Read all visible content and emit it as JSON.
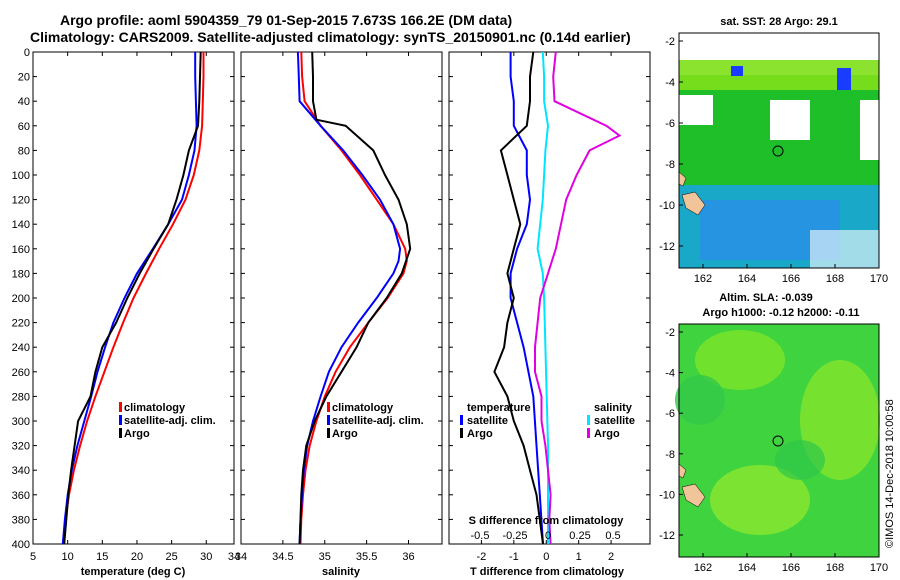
{
  "titles": {
    "line1": "Argo profile: aoml 5904359_79 01-Sep-2015 7.673S 166.2E (DM data)",
    "line2": "Climatology: CARS2009. Satellite-adjusted climatology: synTS_20150901.nc (0.14d earlier)"
  },
  "colors": {
    "climatology": "#ff0000",
    "satellite": "#0000ff",
    "argo": "#000000",
    "sal_satellite": "#00e5ff",
    "sal_argo": "#e000e0"
  },
  "chart_data": [
    {
      "id": "temperature",
      "type": "line",
      "xlabel": "temperature (deg C)",
      "xlim": [
        5,
        34
      ],
      "xticks": [
        5,
        10,
        15,
        20,
        25,
        30,
        34
      ],
      "ylim": [
        0,
        400
      ],
      "yticks": [
        0,
        20,
        40,
        60,
        80,
        100,
        120,
        140,
        160,
        180,
        200,
        220,
        240,
        260,
        280,
        300,
        320,
        340,
        360,
        380,
        400
      ],
      "legend": [
        "climatology",
        "satellite-adj. clim.",
        "Argo"
      ],
      "series": [
        {
          "name": "climatology",
          "color": "#ff0000",
          "depth": [
            0,
            20,
            40,
            60,
            80,
            100,
            120,
            140,
            160,
            180,
            200,
            220,
            240,
            260,
            280,
            300,
            320,
            340,
            360,
            380,
            400
          ],
          "values": [
            29.6,
            29.6,
            29.5,
            29.4,
            29.0,
            28.2,
            27.0,
            25.2,
            23.2,
            21.3,
            19.5,
            18.0,
            16.6,
            15.3,
            14.0,
            12.8,
            11.8,
            10.9,
            10.2,
            9.7,
            9.3
          ]
        },
        {
          "name": "satellite-adj. clim.",
          "color": "#0000ff",
          "depth": [
            0,
            20,
            40,
            60,
            80,
            100,
            120,
            140,
            160,
            180,
            200,
            220,
            240,
            260,
            280,
            300,
            320,
            340,
            360,
            380,
            400
          ],
          "values": [
            28.4,
            28.4,
            28.5,
            28.6,
            28.3,
            27.5,
            26.5,
            24.5,
            22.3,
            20.0,
            18.2,
            16.6,
            15.4,
            14.3,
            13.4,
            12.4,
            11.4,
            10.6,
            10.0,
            9.6,
            9.3
          ]
        },
        {
          "name": "Argo",
          "color": "#000000",
          "depth": [
            0,
            20,
            40,
            60,
            80,
            100,
            120,
            140,
            160,
            180,
            200,
            220,
            240,
            260,
            280,
            300,
            320,
            340,
            360,
            380,
            400
          ],
          "values": [
            29.2,
            29.1,
            29.0,
            28.8,
            27.5,
            26.7,
            25.7,
            24.5,
            22.4,
            20.4,
            18.6,
            17.0,
            15.0,
            14.0,
            13.3,
            11.5,
            11.0,
            10.5,
            10.1,
            9.8,
            9.5
          ]
        }
      ]
    },
    {
      "id": "salinity",
      "type": "line",
      "xlabel": "salinity",
      "xlim": [
        34,
        36.4
      ],
      "xticks": [
        34,
        34.5,
        35,
        35.5,
        36
      ],
      "ylim": [
        0,
        400
      ],
      "legend": [
        "climatology",
        "satellite-adj. clim.",
        "Argo"
      ],
      "series": [
        {
          "name": "climatology",
          "color": "#ff0000",
          "depth": [
            0,
            20,
            40,
            60,
            80,
            100,
            120,
            140,
            160,
            170,
            180,
            200,
            220,
            240,
            260,
            280,
            300,
            320,
            340,
            360,
            380,
            400
          ],
          "values": [
            34.72,
            34.73,
            34.76,
            34.95,
            35.2,
            35.42,
            35.62,
            35.82,
            35.96,
            35.98,
            35.94,
            35.75,
            35.52,
            35.3,
            35.13,
            35.0,
            34.9,
            34.82,
            34.77,
            34.74,
            34.72,
            34.71
          ]
        },
        {
          "name": "satellite-adj. clim.",
          "color": "#0000ff",
          "depth": [
            0,
            20,
            40,
            60,
            80,
            100,
            120,
            140,
            160,
            170,
            180,
            200,
            220,
            240,
            260,
            280,
            300,
            320,
            340,
            360,
            380,
            400
          ],
          "values": [
            34.68,
            34.69,
            34.7,
            34.95,
            35.22,
            35.45,
            35.66,
            35.82,
            35.9,
            35.88,
            35.82,
            35.62,
            35.4,
            35.2,
            35.05,
            34.95,
            34.86,
            34.79,
            34.75,
            34.73,
            34.71,
            34.7
          ]
        },
        {
          "name": "Argo",
          "color": "#000000",
          "depth": [
            0,
            20,
            40,
            55,
            60,
            80,
            100,
            120,
            140,
            160,
            180,
            200,
            220,
            240,
            260,
            280,
            300,
            320,
            340,
            360,
            380,
            400
          ],
          "values": [
            34.85,
            34.86,
            34.86,
            34.9,
            35.25,
            35.58,
            35.72,
            35.88,
            35.98,
            36.02,
            35.92,
            35.74,
            35.52,
            35.38,
            35.2,
            35.02,
            34.88,
            34.78,
            34.74,
            34.72,
            34.71,
            34.7
          ]
        }
      ]
    },
    {
      "id": "difference",
      "type": "line",
      "xlabel": "T difference from climatology",
      "xlim": [
        -3,
        3.2
      ],
      "xticks": [
        -2,
        -1,
        0,
        1,
        2
      ],
      "ylim": [
        0,
        400
      ],
      "top_label": "S difference from climatology",
      "s_ticks": [
        "-0.5",
        "-0.25",
        "0",
        "0.25",
        "0.5"
      ],
      "legend_left_title": "temperature",
      "legend_right_title": "salinity",
      "legend_left": [
        "satellite",
        "Argo"
      ],
      "legend_right": [
        "satellite",
        "Argo"
      ],
      "series": [
        {
          "name": "T satellite",
          "color": "#0000ff",
          "depth": [
            0,
            20,
            40,
            60,
            80,
            100,
            120,
            140,
            160,
            180,
            200,
            240,
            280,
            320,
            360,
            400
          ],
          "values": [
            -1.1,
            -1.1,
            -1.0,
            -1.0,
            -0.6,
            -0.6,
            -0.5,
            -0.6,
            -0.9,
            -1.1,
            -1.1,
            -0.7,
            -0.4,
            -0.3,
            -0.2,
            -0.1
          ]
        },
        {
          "name": "T Argo",
          "color": "#000000",
          "depth": [
            0,
            20,
            40,
            60,
            80,
            100,
            120,
            140,
            160,
            180,
            200,
            220,
            240,
            260,
            280,
            300,
            320,
            340,
            360,
            380,
            400
          ],
          "values": [
            -0.4,
            -0.5,
            -0.5,
            -0.6,
            -1.4,
            -1.2,
            -1.0,
            -0.8,
            -1.0,
            -1.2,
            -1.0,
            -1.2,
            -1.3,
            -1.6,
            -1.2,
            -1.0,
            -0.7,
            -0.5,
            -0.3,
            -0.2,
            -0.1
          ]
        },
        {
          "name": "S satellite",
          "color": "#00e5ff",
          "depth": [
            0,
            20,
            40,
            60,
            80,
            100,
            120,
            140,
            160,
            180,
            200,
            240,
            280,
            320,
            360,
            400
          ],
          "values": [
            -0.04,
            -0.03,
            -0.03,
            0.0,
            -0.02,
            -0.03,
            -0.04,
            -0.06,
            -0.08,
            -0.04,
            -0.03,
            -0.02,
            -0.01,
            0.0,
            0.0,
            0.0
          ]
        },
        {
          "name": "S Argo",
          "color": "#e000e0",
          "depth": [
            0,
            20,
            40,
            60,
            68,
            80,
            100,
            120,
            140,
            160,
            180,
            200,
            220,
            240,
            260,
            280,
            300,
            320,
            340,
            360,
            380,
            400
          ],
          "values": [
            0.06,
            0.04,
            0.05,
            0.45,
            0.55,
            0.32,
            0.22,
            0.14,
            0.1,
            0.06,
            0.0,
            -0.06,
            -0.08,
            -0.1,
            -0.1,
            -0.05,
            -0.05,
            -0.02,
            0.0,
            0.02,
            0.01,
            0.02
          ]
        }
      ]
    }
  ],
  "maps": {
    "sst": {
      "title": "sat. SST: 28 Argo: 29.1",
      "yticks": [
        "-2",
        "-4",
        "-6",
        "-8",
        "-10",
        "-12"
      ],
      "xticks": [
        "162",
        "164",
        "166",
        "168",
        "170"
      ]
    },
    "sla": {
      "title1": "Altim. SLA: -0.039",
      "title2": "Argo h1000: -0.12 h2000: -0.11",
      "yticks": [
        "-2",
        "-4",
        "-6",
        "-8",
        "-10",
        "-12"
      ],
      "xticks": [
        "162",
        "164",
        "166",
        "168",
        "170"
      ]
    }
  },
  "footer": {
    "stamp": "©IMOS 14-Dec-2018 10:00:58"
  }
}
